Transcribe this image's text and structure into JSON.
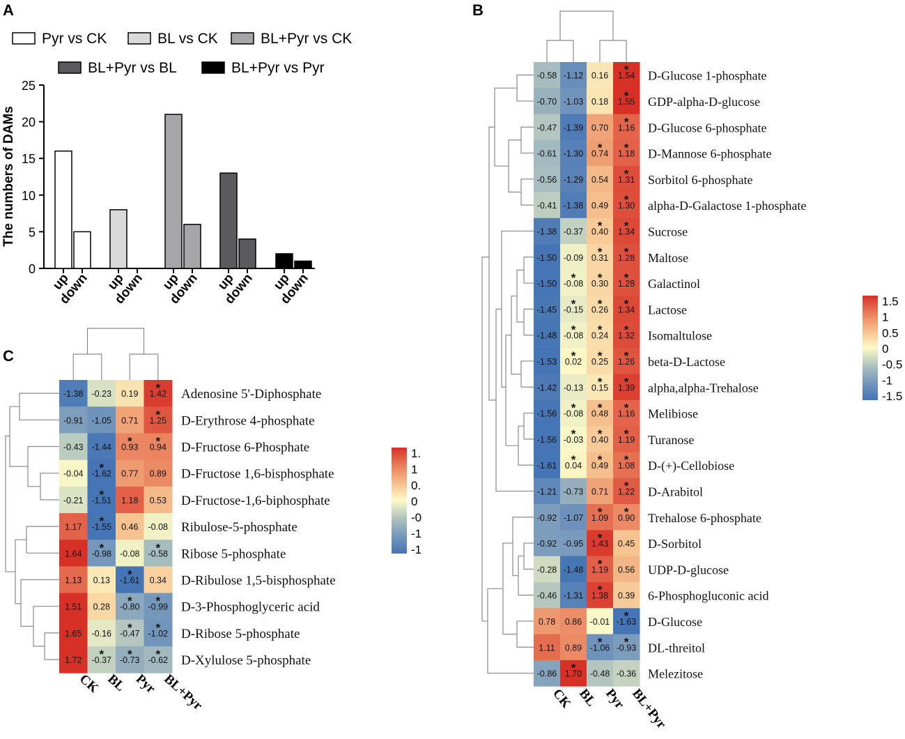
{
  "panel_labels": {
    "a": "A",
    "b": "B",
    "c": "C"
  },
  "chart_data": [
    {
      "type": "bar",
      "panel": "A",
      "title": "",
      "xlabel": "",
      "ylabel": "The numbers of DAMs",
      "ylim": [
        0,
        25
      ],
      "yticks": [
        0,
        5,
        10,
        15,
        20,
        25
      ],
      "legend": [
        {
          "name": "Pyr vs CK",
          "color": "#ffffff"
        },
        {
          "name": "BL vs CK",
          "color": "#d9d9d9"
        },
        {
          "name": "BL+Pyr vs CK",
          "color": "#a6a6a8"
        },
        {
          "name": "BL+Pyr vs BL",
          "color": "#5b5b5d"
        },
        {
          "name": "BL+Pyr vs Pyr",
          "color": "#000000"
        }
      ],
      "categories": [
        "up",
        "down"
      ],
      "series": [
        {
          "name": "Pyr vs CK",
          "values": [
            16,
            5
          ]
        },
        {
          "name": "BL vs CK",
          "values": [
            8,
            0
          ]
        },
        {
          "name": "BL+Pyr vs CK",
          "values": [
            21,
            6
          ]
        },
        {
          "name": "BL+Pyr vs BL",
          "values": [
            13,
            4
          ]
        },
        {
          "name": "BL+Pyr vs Pyr",
          "values": [
            2,
            1
          ]
        }
      ]
    },
    {
      "type": "heatmap",
      "panel": "B",
      "columns": [
        "CK",
        "BL",
        "Pyr",
        "BL+Pyr"
      ],
      "colorbar": {
        "ticks": [
          "1.5",
          "1",
          "0.5",
          "0",
          "-0.5",
          "-1",
          "-1.5"
        ],
        "min": -1.5,
        "max": 1.5
      },
      "rows": [
        {
          "name": "D-Glucose 1-phosphate",
          "values": [
            -0.58,
            -1.12,
            0.16,
            1.54
          ],
          "labels": [
            "-0.58",
            "-1.12",
            "0.16",
            "1.54"
          ],
          "sig": [
            false,
            false,
            false,
            true
          ]
        },
        {
          "name": "GDP-alpha-D-glucose",
          "values": [
            -0.7,
            -1.03,
            0.18,
            1.55
          ],
          "labels": [
            "-0.70",
            "-1.03",
            "0.18",
            "1.55"
          ],
          "sig": [
            false,
            false,
            false,
            true
          ]
        },
        {
          "name": "D-Glucose 6-phosphate",
          "values": [
            -0.47,
            -1.39,
            0.7,
            1.16
          ],
          "labels": [
            "-0.47",
            "-1.39",
            "0.70",
            "1.16"
          ],
          "sig": [
            false,
            false,
            false,
            true
          ]
        },
        {
          "name": "D-Mannose 6-phosphate",
          "values": [
            -0.61,
            -1.3,
            0.74,
            1.18
          ],
          "labels": [
            "-0.61",
            "-1.30",
            "0.74",
            "1.18"
          ],
          "sig": [
            false,
            false,
            true,
            true
          ]
        },
        {
          "name": "Sorbitol 6-phosphate",
          "values": [
            -0.56,
            -1.29,
            0.54,
            1.31
          ],
          "labels": [
            "-0.56",
            "-1.29",
            "0.54",
            "1.31"
          ],
          "sig": [
            false,
            false,
            false,
            true
          ]
        },
        {
          "name": "alpha-D-Galactose 1-phosphate",
          "values": [
            -0.41,
            -1.38,
            0.49,
            1.3
          ],
          "labels": [
            "-0.41",
            "-1.38",
            "0.49",
            "1.30"
          ],
          "sig": [
            false,
            false,
            false,
            true
          ]
        },
        {
          "name": "Sucrose",
          "values": [
            -1.38,
            -0.37,
            0.4,
            1.34
          ],
          "labels": [
            "-1.38",
            "-0.37",
            "0.40",
            "1.34"
          ],
          "sig": [
            false,
            false,
            true,
            true
          ]
        },
        {
          "name": "Maltose",
          "values": [
            -1.5,
            -0.09,
            0.31,
            1.28
          ],
          "labels": [
            "-1.50",
            "-0.09",
            "0.31",
            "1.28"
          ],
          "sig": [
            false,
            false,
            true,
            true
          ]
        },
        {
          "name": "Galactinol",
          "values": [
            -1.5,
            -0.08,
            0.3,
            1.28
          ],
          "labels": [
            "-1.50",
            "-0.08",
            "0.30",
            "1.28"
          ],
          "sig": [
            false,
            true,
            true,
            true
          ]
        },
        {
          "name": "Lactose",
          "values": [
            -1.45,
            -0.15,
            0.26,
            1.34
          ],
          "labels": [
            "-1.45",
            "-0.15",
            "0.26",
            "1.34"
          ],
          "sig": [
            false,
            true,
            true,
            true
          ]
        },
        {
          "name": "Isomaltulose",
          "values": [
            -1.48,
            -0.08,
            0.24,
            1.32
          ],
          "labels": [
            "-1.48",
            "-0.08",
            "0.24",
            "1.32"
          ],
          "sig": [
            false,
            true,
            true,
            true
          ]
        },
        {
          "name": "beta-D-Lactose",
          "values": [
            -1.53,
            0.02,
            0.25,
            1.26
          ],
          "labels": [
            "-1.53",
            "0.02",
            "0.25",
            "1.26"
          ],
          "sig": [
            false,
            true,
            true,
            true
          ]
        },
        {
          "name": "alpha,alpha-Trehalose",
          "values": [
            -1.42,
            -0.13,
            0.15,
            1.39
          ],
          "labels": [
            "-1.42",
            "-0.13",
            "0.15",
            "1.39"
          ],
          "sig": [
            false,
            false,
            true,
            true
          ]
        },
        {
          "name": "Melibiose",
          "values": [
            -1.56,
            -0.08,
            0.48,
            1.16
          ],
          "labels": [
            "-1.56",
            "-0.08",
            "0.48",
            "1.16"
          ],
          "sig": [
            false,
            true,
            true,
            true
          ]
        },
        {
          "name": "Turanose",
          "values": [
            -1.56,
            -0.03,
            0.4,
            1.19
          ],
          "labels": [
            "-1.56",
            "-0.03",
            "0.40",
            "1.19"
          ],
          "sig": [
            false,
            true,
            true,
            true
          ]
        },
        {
          "name": "D-(+)-Cellobiose",
          "values": [
            -1.61,
            0.04,
            0.49,
            1.08
          ],
          "labels": [
            "-1.61",
            "0.04",
            "0.49",
            "1.08"
          ],
          "sig": [
            false,
            true,
            true,
            true
          ]
        },
        {
          "name": "D-Arabitol",
          "values": [
            -1.21,
            -0.73,
            0.71,
            1.22
          ],
          "labels": [
            "-1.21",
            "-0.73",
            "0.71",
            "1.22"
          ],
          "sig": [
            false,
            false,
            false,
            true
          ]
        },
        {
          "name": "Trehalose 6-phosphate",
          "values": [
            -0.92,
            -1.07,
            1.09,
            0.9
          ],
          "labels": [
            "-0.92",
            "-1.07",
            "1.09",
            "0.90"
          ],
          "sig": [
            false,
            false,
            true,
            true
          ]
        },
        {
          "name": "D-Sorbitol",
          "values": [
            -0.92,
            -0.95,
            1.43,
            0.45
          ],
          "labels": [
            "-0.92",
            "-0.95",
            "1.43",
            "0.45"
          ],
          "sig": [
            false,
            false,
            true,
            false
          ]
        },
        {
          "name": "UDP-D-glucose",
          "values": [
            -0.28,
            -1.48,
            1.19,
            0.56
          ],
          "labels": [
            "-0.28",
            "-1.48",
            "1.19",
            "0.56"
          ],
          "sig": [
            false,
            false,
            true,
            false
          ]
        },
        {
          "name": "6-Phosphogluconic acid",
          "values": [
            -0.46,
            -1.31,
            1.38,
            0.39
          ],
          "labels": [
            "-0.46",
            "-1.31",
            "1.38",
            "0.39"
          ],
          "sig": [
            false,
            false,
            true,
            false
          ]
        },
        {
          "name": "D-Glucose",
          "values": [
            0.78,
            0.86,
            -0.01,
            -1.63
          ],
          "labels": [
            "0.78",
            "0.86",
            "-0.01",
            "-1.63"
          ],
          "sig": [
            false,
            false,
            false,
            true
          ]
        },
        {
          "name": "DL-threitol",
          "values": [
            1.11,
            0.89,
            -1.06,
            -0.93
          ],
          "labels": [
            "1.11",
            "0.89",
            "-1.06",
            "-0.93"
          ],
          "sig": [
            false,
            false,
            true,
            true
          ]
        },
        {
          "name": "Melezitose",
          "values": [
            -0.86,
            1.7,
            -0.48,
            -0.36
          ],
          "labels": [
            "-0.86",
            "1.70",
            "-0.48",
            "-0.36"
          ],
          "sig": [
            false,
            true,
            false,
            false
          ]
        }
      ]
    },
    {
      "type": "heatmap",
      "panel": "C",
      "columns": [
        "CK",
        "BL",
        "Pyr",
        "BL+Pyr"
      ],
      "colorbar": {
        "ticks": [
          "1.",
          "1",
          "0.",
          "0",
          "-0",
          "-1",
          "-1"
        ],
        "min": -1.5,
        "max": 1.5
      },
      "rows": [
        {
          "name": "Adenosine 5'-Diphosphate",
          "values": [
            -1.38,
            -0.23,
            0.19,
            1.42
          ],
          "labels": [
            "-1.38",
            "-0.23",
            "0.19",
            "1.42"
          ],
          "sig": [
            false,
            false,
            false,
            true
          ]
        },
        {
          "name": "D-Erythrose 4-phosphate",
          "values": [
            -0.91,
            -1.05,
            0.71,
            1.25
          ],
          "labels": [
            "-0.91",
            "-1.05",
            "0.71",
            "1.25"
          ],
          "sig": [
            false,
            false,
            false,
            true
          ]
        },
        {
          "name": "D-Fructose 6-Phosphate",
          "values": [
            -0.43,
            -1.44,
            0.93,
            0.94
          ],
          "labels": [
            "-0.43",
            "-1.44",
            "0.93",
            "0.94"
          ],
          "sig": [
            false,
            false,
            true,
            true
          ]
        },
        {
          "name": "D-Fructose 1,6-bisphosphate",
          "values": [
            -0.04,
            -1.62,
            0.77,
            0.89
          ],
          "labels": [
            "-0.04",
            "-1.62",
            "0.77",
            "0.89"
          ],
          "sig": [
            false,
            true,
            false,
            false
          ]
        },
        {
          "name": "D-Fructose-1,6-biphosphate",
          "values": [
            -0.21,
            -1.51,
            1.18,
            0.53
          ],
          "labels": [
            "-0.21",
            "-1.51",
            "1.18",
            "0.53"
          ],
          "sig": [
            false,
            true,
            false,
            false
          ]
        },
        {
          "name": "Ribulose-5-phosphate",
          "values": [
            1.17,
            -1.55,
            0.46,
            -0.08
          ],
          "labels": [
            "1.17",
            "-1.55",
            "0.46",
            "-0.08"
          ],
          "sig": [
            false,
            true,
            false,
            false
          ]
        },
        {
          "name": "Ribose 5-phosphate",
          "values": [
            1.64,
            -0.98,
            -0.08,
            -0.58
          ],
          "labels": [
            "1.64",
            "-0.98",
            "-0.08",
            "-0.58"
          ],
          "sig": [
            false,
            true,
            false,
            true
          ]
        },
        {
          "name": "D-Ribulose 1,5-bisphosphate",
          "values": [
            1.13,
            0.13,
            -1.61,
            0.34
          ],
          "labels": [
            "1.13",
            "0.13",
            "-1.61",
            "0.34"
          ],
          "sig": [
            false,
            false,
            true,
            false
          ]
        },
        {
          "name": "D-3-Phosphoglyceric acid",
          "values": [
            1.51,
            0.28,
            -0.8,
            -0.99
          ],
          "labels": [
            "1.51",
            "0.28",
            "-0.80",
            "-0.99"
          ],
          "sig": [
            false,
            false,
            true,
            true
          ]
        },
        {
          "name": "D-Ribose 5-phosphate",
          "values": [
            1.65,
            -0.16,
            -0.47,
            -1.02
          ],
          "labels": [
            "1.65",
            "-0.16",
            "-0.47",
            "-1.02"
          ],
          "sig": [
            false,
            false,
            true,
            true
          ]
        },
        {
          "name": "D-Xylulose 5-phosphate",
          "values": [
            1.72,
            -0.37,
            -0.73,
            -0.62
          ],
          "labels": [
            "1.72",
            "-0.37",
            "-0.73",
            "-0.62"
          ],
          "sig": [
            false,
            true,
            true,
            true
          ]
        }
      ]
    }
  ]
}
